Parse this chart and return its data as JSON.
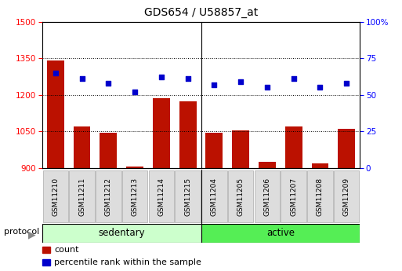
{
  "title": "GDS654 / U58857_at",
  "categories": [
    "GSM11210",
    "GSM11211",
    "GSM11212",
    "GSM11213",
    "GSM11214",
    "GSM11215",
    "GSM11204",
    "GSM11205",
    "GSM11206",
    "GSM11207",
    "GSM11208",
    "GSM11209"
  ],
  "bar_values": [
    1340,
    1070,
    1045,
    905,
    1185,
    1175,
    1043,
    1055,
    925,
    1070,
    920,
    1060
  ],
  "percentile_values": [
    65,
    61,
    58,
    52,
    62,
    61,
    57,
    59,
    55,
    61,
    55,
    58
  ],
  "groups": [
    {
      "label": "sedentary",
      "start": 0,
      "end": 6,
      "color": "#ccffcc"
    },
    {
      "label": "active",
      "start": 6,
      "end": 12,
      "color": "#55ee55"
    }
  ],
  "protocol_label": "protocol",
  "left_ylim": [
    900,
    1500
  ],
  "right_ylim": [
    0,
    100
  ],
  "left_yticks": [
    900,
    1050,
    1200,
    1350,
    1500
  ],
  "right_yticks": [
    0,
    25,
    50,
    75,
    100
  ],
  "right_yticklabels": [
    "0",
    "25",
    "50",
    "75",
    "100%"
  ],
  "bar_color": "#bb1100",
  "dot_color": "#0000cc",
  "background_color": "#ffffff",
  "title_fontsize": 10,
  "tick_fontsize": 7.5,
  "label_fontsize": 8,
  "legend_items": [
    {
      "label": "count",
      "color": "#bb1100"
    },
    {
      "label": "percentile rank within the sample",
      "color": "#0000cc"
    }
  ]
}
